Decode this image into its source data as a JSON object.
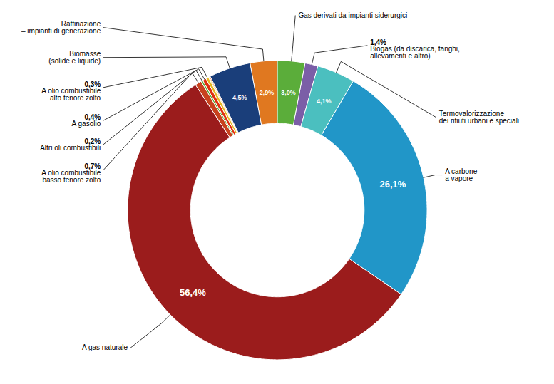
{
  "chart_data": {
    "type": "donut",
    "categories": [
      "Gas derivati da impianti siderurgici",
      "Biogas (da discarica, fanghi,\nallevamenti e altro)",
      "Termovalorizzazione\ndei rifiuti urbani e speciali",
      "A carbone\na vapore",
      "A gas naturale",
      "A olio combustibile\nbasso tenore zolfo",
      "Altri oli combustibili",
      "A gasolio",
      "A olio combustibile\nalto tenore zolfo",
      null,
      null,
      "Biomasse\n(solide e liquide)",
      "Raffinazione\n– impianti di generazione"
    ],
    "values": [
      3.0,
      1.4,
      4.1,
      26.1,
      56.4,
      0.7,
      0.2,
      0.4,
      0.3,
      0.1,
      0.1,
      4.5,
      2.9
    ],
    "value_labels": [
      "3,0%",
      "1,4%",
      "4,1%",
      "26,1%",
      "56,4%",
      "0,7%",
      "0,2%",
      "0,4%",
      "0,3%",
      null,
      null,
      "4,5%",
      "2,9%"
    ],
    "colors": [
      "#5BAD3A",
      "#7B5EA7",
      "#4BBFBF",
      "#2196C8",
      "#9B1C1C",
      "#C8421E",
      "#5BAD3A",
      "#E03010",
      "#E8B820",
      "#F0D000",
      "#CC2200",
      "#1A3E7A",
      "#E07820"
    ],
    "data_labels": true
  }
}
